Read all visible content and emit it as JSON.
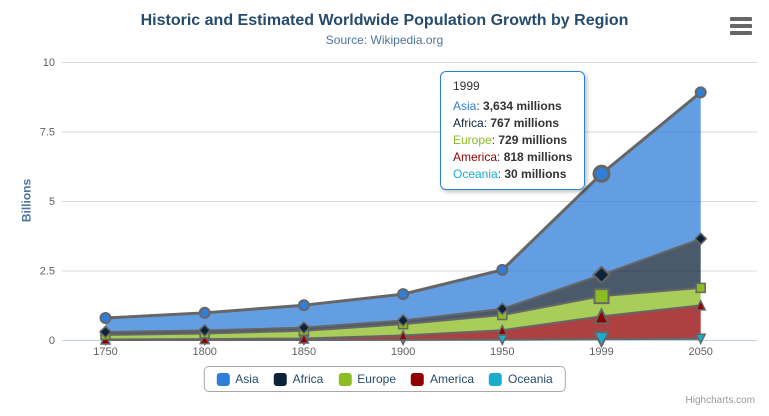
{
  "chart": {
    "title": "Historic and Estimated Worldwide Population Growth by Region",
    "subtitle": "Source: Wikipedia.org",
    "credits": "Highcharts.com"
  },
  "colors": {
    "title": "#274b6d",
    "subtitle": "#4d759e",
    "axis_labels": "#606060",
    "grid": "#d8d8d8",
    "axis_line": "#c0d0e0",
    "series_line": "#666666",
    "legend_border": "#a7a7a7",
    "legend_text": "#274b6d",
    "tooltip_border": "#2f7ed8",
    "credits": "#999999"
  },
  "chart_data": {
    "type": "area",
    "stacking": "normal",
    "title": "Historic and Estimated Worldwide Population Growth by Region",
    "subtitle": "Source: Wikipedia.org",
    "categories": [
      "1750",
      "1800",
      "1850",
      "1900",
      "1950",
      "1999",
      "2050"
    ],
    "xlabel": "",
    "ylabel": "Billions",
    "ylim": [
      0,
      10
    ],
    "yticks": [
      0,
      2.5,
      5,
      7.5,
      10
    ],
    "unit": "millions",
    "grid": true,
    "legend_position": "bottom",
    "series": [
      {
        "name": "Asia",
        "color": "#2f7ed8",
        "marker": "circle",
        "values": [
          502,
          635,
          809,
          947,
          1402,
          3634,
          5268
        ]
      },
      {
        "name": "Africa",
        "color": "#0d233a",
        "marker": "diamond",
        "values": [
          106,
          107,
          111,
          133,
          221,
          767,
          1766
        ]
      },
      {
        "name": "Europe",
        "color": "#8bbc21",
        "marker": "square",
        "values": [
          163,
          203,
          276,
          408,
          547,
          729,
          628
        ]
      },
      {
        "name": "America",
        "color": "#910000",
        "marker": "triangle",
        "values": [
          18,
          31,
          54,
          156,
          339,
          818,
          1201
        ]
      },
      {
        "name": "Oceania",
        "color": "#1aadce",
        "marker": "triangle-down",
        "values": [
          2,
          2,
          2,
          6,
          13,
          30,
          46
        ]
      }
    ],
    "stack_order_bottom_to_top": [
      "Oceania",
      "America",
      "Europe",
      "Africa",
      "Asia"
    ],
    "hover_category": "1999",
    "hover_series": "Asia"
  },
  "tooltip": {
    "header": "1999",
    "rows": [
      {
        "name": "Asia",
        "color": "#2f7ed8",
        "value": "3,634 millions"
      },
      {
        "name": "Africa",
        "color": "#0d233a",
        "value": "767 millions"
      },
      {
        "name": "Europe",
        "color": "#8bbc21",
        "value": "729 millions"
      },
      {
        "name": "America",
        "color": "#910000",
        "value": "818 millions"
      },
      {
        "name": "Oceania",
        "color": "#1aadce",
        "value": "30 millions"
      }
    ]
  }
}
